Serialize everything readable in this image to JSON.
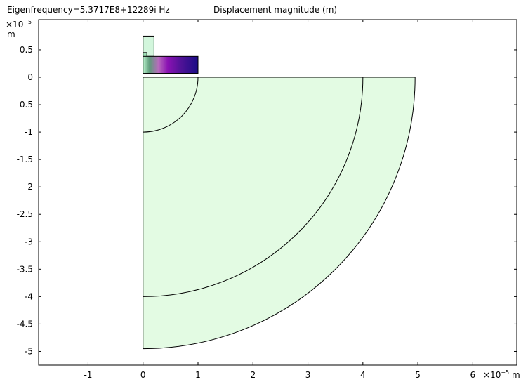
{
  "title": {
    "eigenfrequency": "Eigenfrequency=5.3717E8+12289i Hz",
    "quantity": "Displacement magnitude (m)"
  },
  "axes": {
    "x_unit": "m",
    "y_unit": "m",
    "x_exponent": "×10",
    "y_exponent": "×10",
    "exponent_power": "−5"
  },
  "chart_data": {
    "type": "heatmap",
    "title": "Displacement magnitude (m)",
    "scale_factor": 1e-05,
    "xlim": [
      -1.9,
      6.8
    ],
    "ylim": [
      -5.25,
      1.05
    ],
    "x_ticks": [
      -1,
      0,
      1,
      2,
      3,
      4,
      5,
      6
    ],
    "x_tick_labels": [
      "-1",
      "0",
      "1",
      "2",
      "3",
      "4",
      "5",
      "6"
    ],
    "y_ticks": [
      0.5,
      0,
      -0.5,
      -1,
      -1.5,
      -2,
      -2.5,
      -3,
      -3.5,
      -4,
      -4.5,
      -5
    ],
    "y_tick_labels": [
      "0.5",
      "0",
      "-0.5",
      "-1",
      "-1.5",
      "-2",
      "-2.5",
      "-3",
      "-3.5",
      "-4",
      "-4.5",
      "-5"
    ],
    "grid": false,
    "geometry": {
      "quarter_disk_radius": 1,
      "inner_arc_radius": 4,
      "outer_arc_radius": 4.95,
      "resonator_bar": {
        "x0": 0,
        "x1": 1,
        "y0": 0.07,
        "y1": 0.38
      },
      "top_post": {
        "x0": 0,
        "x1": 0.2,
        "y0": 0.38,
        "y1": 0.75
      },
      "left_strip": {
        "x0": 0,
        "x1": 0.07,
        "y0": 0.07,
        "y1": 0.45
      }
    },
    "colors": {
      "domain_fill": "#e3fbe3",
      "post_fill": "#d2f6dc",
      "bar_gradient": [
        "#b9f2cc",
        "#5e9a7a",
        "#b86bbd",
        "#8a12b3",
        "#4e1296",
        "#1a0c85"
      ]
    }
  }
}
